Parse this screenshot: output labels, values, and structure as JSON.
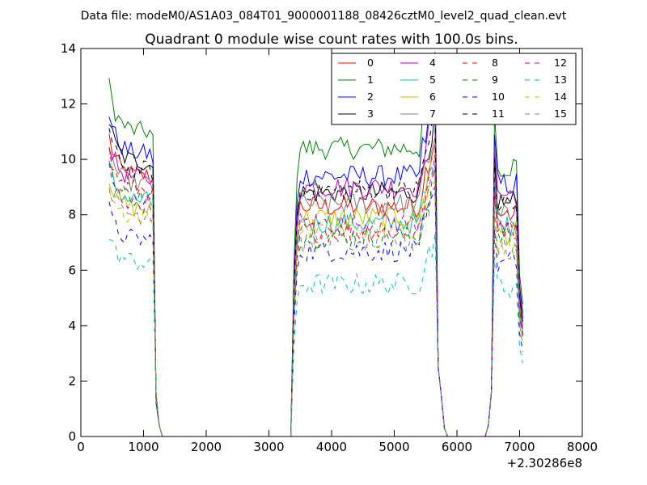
{
  "chart_data": {
    "type": "line",
    "suptitle": "Data file: modeM0/AS1A03_084T01_9000001188_08426cztM0_level2_quad_clean.evt",
    "title": "Quadrant 0 module wise count rates with 100.0s bins.",
    "xlabel": "",
    "ylabel": "",
    "x_offset_label": "+2.30286e8",
    "xlim": [
      0,
      8000
    ],
    "ylim": [
      0,
      14
    ],
    "x_ticks": [
      0,
      1000,
      2000,
      3000,
      4000,
      5000,
      6000,
      7000,
      8000
    ],
    "y_ticks": [
      0,
      2,
      4,
      6,
      8,
      10,
      12,
      14
    ],
    "grid": false,
    "legend_position": "top-right",
    "legend_columns": 4,
    "segments": [
      {
        "x_start": 450,
        "x_end": 1350,
        "step": 50
      },
      {
        "x_start": 1350,
        "x_end": 3350,
        "step": 2000
      },
      {
        "x_start": 3350,
        "x_end": 5900,
        "step": 50
      },
      {
        "x_start": 5900,
        "x_end": 6450,
        "step": 550
      },
      {
        "x_start": 6450,
        "x_end": 7050,
        "step": 50
      }
    ],
    "series": [
      {
        "name": "0",
        "color": "#ff0000",
        "style": "solid",
        "plateau_a": 9.4,
        "plateau_b": 8.3,
        "plateau_c": 8.7
      },
      {
        "name": "1",
        "color": "#008000",
        "style": "solid",
        "plateau_a": 11.0,
        "plateau_b": 10.4,
        "plateau_c": 10.6
      },
      {
        "name": "2",
        "color": "#0000ff",
        "style": "solid",
        "plateau_a": 10.2,
        "plateau_b": 9.4,
        "plateau_c": 9.9
      },
      {
        "name": "3",
        "color": "#000000",
        "style": "solid",
        "plateau_a": 9.9,
        "plateau_b": 8.8,
        "plateau_c": 9.2
      },
      {
        "name": "4",
        "color": "#bf00bf",
        "style": "solid",
        "plateau_a": 9.3,
        "plateau_b": 9.0,
        "plateau_c": 9.5
      },
      {
        "name": "5",
        "color": "#00bfbf",
        "style": "solid",
        "plateau_a": 8.5,
        "plateau_b": 7.7,
        "plateau_c": 8.3
      },
      {
        "name": "6",
        "color": "#bfbf00",
        "style": "solid",
        "plateau_a": 8.2,
        "plateau_b": 7.9,
        "plateau_c": 8.0
      },
      {
        "name": "7",
        "color": "#808080",
        "style": "solid",
        "plateau_a": 9.1,
        "plateau_b": 8.4,
        "plateau_c": 8.6
      },
      {
        "name": "8",
        "color": "#ff0000",
        "style": "dashed",
        "plateau_a": 8.9,
        "plateau_b": 7.4,
        "plateau_c": 8.2
      },
      {
        "name": "9",
        "color": "#008000",
        "style": "dashed",
        "plateau_a": 8.6,
        "plateau_b": 7.2,
        "plateau_c": 7.9
      },
      {
        "name": "10",
        "color": "#0000ff",
        "style": "dashed",
        "plateau_a": 7.1,
        "plateau_b": 6.7,
        "plateau_c": 6.8
      },
      {
        "name": "11",
        "color": "#000000",
        "style": "dashed",
        "plateau_a": 9.6,
        "plateau_b": 8.9,
        "plateau_c": 9.1
      },
      {
        "name": "12",
        "color": "#bf00bf",
        "style": "dashed",
        "plateau_a": 8.4,
        "plateau_b": 7.7,
        "plateau_c": 8.1
      },
      {
        "name": "13",
        "color": "#00bfbf",
        "style": "dashed",
        "plateau_a": 6.3,
        "plateau_b": 5.5,
        "plateau_c": 5.9
      },
      {
        "name": "14",
        "color": "#bfbf00",
        "style": "dashed",
        "plateau_a": 7.9,
        "plateau_b": 7.5,
        "plateau_c": 7.6
      },
      {
        "name": "15",
        "color": "#808080",
        "style": "dashed",
        "plateau_a": 8.0,
        "plateau_b": 7.0,
        "plateau_c": 7.3
      }
    ]
  }
}
